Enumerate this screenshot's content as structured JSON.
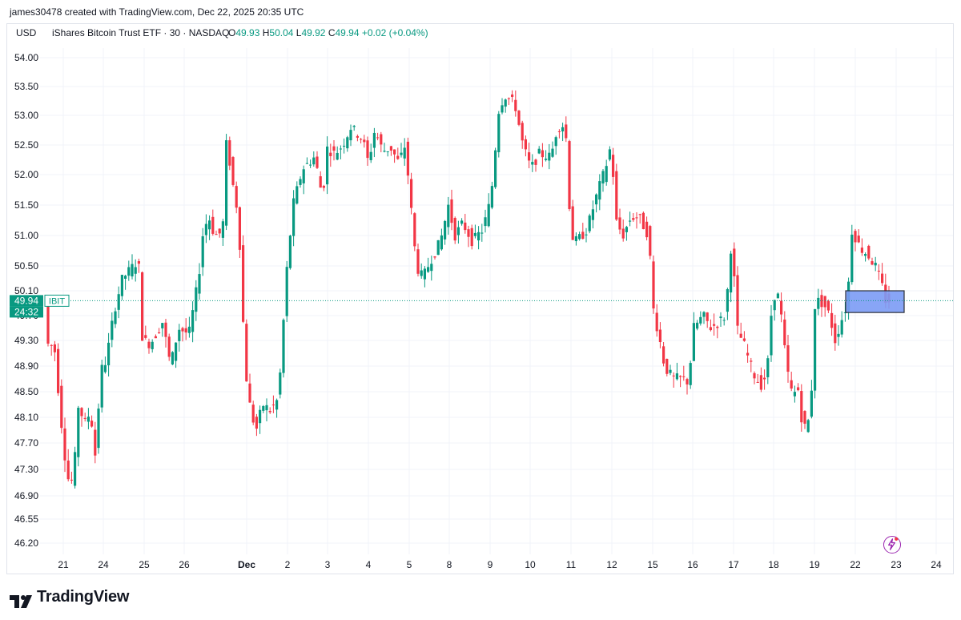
{
  "header": {
    "created_by": "james30478 created with TradingView.com, Dec 22, 2025 20:35 UTC"
  },
  "legend": {
    "currency": "USD",
    "symbol_desc": "iShares Bitcoin Trust ETF · 30 · NASDAQ",
    "o_label": "O",
    "o_value": "49.93",
    "h_label": "H",
    "h_value": "50.04",
    "l_label": "L",
    "l_value": "49.92",
    "c_label": "C",
    "c_value": "49.94",
    "change": "+0.02 (+0.04%)"
  },
  "price_tag": {
    "price": "49.94",
    "ticker": "IBIT",
    "countdown": "24:32"
  },
  "brand": {
    "name": "TradingView"
  },
  "colors": {
    "up": "#089981",
    "down": "#f23645",
    "grid": "#f0f3fa",
    "text": "#131722",
    "box_fill": "#7b9bf5",
    "box_stroke": "#2a2e39",
    "accent_purple": "#9c27b0"
  },
  "chart_data": {
    "type": "candlestick",
    "interval": "30",
    "yaxis_ticks": [
      "54.00",
      "53.50",
      "53.00",
      "52.50",
      "52.00",
      "51.50",
      "51.00",
      "50.50",
      "50.10",
      "49.70",
      "49.30",
      "48.90",
      "48.50",
      "48.10",
      "47.70",
      "47.30",
      "46.90",
      "46.55",
      "46.20"
    ],
    "xaxis_ticks": [
      "21",
      "24",
      "25",
      "26",
      "Dec",
      "2",
      "3",
      "4",
      "5",
      "8",
      "9",
      "10",
      "11",
      "12",
      "15",
      "16",
      "17",
      "18",
      "19",
      "22",
      "23",
      "24"
    ],
    "ylim": [
      46.0,
      54.25
    ],
    "current_price": 49.94,
    "grid": true,
    "session_closes": [
      {
        "session": "21",
        "close": 49.3
      },
      {
        "session": "24",
        "close": 47.35
      },
      {
        "session": "24b",
        "close": 48.8
      },
      {
        "session": "25",
        "close": 50.65
      },
      {
        "session": "25b",
        "close": 49.35
      },
      {
        "session": "26",
        "close": 48.9
      },
      {
        "session": "26b",
        "close": 51.05
      },
      {
        "session": "Dec",
        "close": 51.3
      },
      {
        "session": "Dec-b",
        "close": 48.45
      },
      {
        "session": "3",
        "close": 52.45
      },
      {
        "session": "4",
        "close": 52.6
      },
      {
        "session": "5",
        "close": 50.5
      },
      {
        "session": "8",
        "close": 51.05
      },
      {
        "session": "9",
        "close": 53.2
      },
      {
        "session": "10",
        "close": 52.5
      },
      {
        "session": "11",
        "close": 51.0
      },
      {
        "session": "12",
        "close": 51.05
      },
      {
        "session": "15",
        "close": 48.7
      },
      {
        "session": "16",
        "close": 49.75
      },
      {
        "session": "17",
        "close": 48.75
      },
      {
        "session": "18",
        "close": 48.6
      },
      {
        "session": "19",
        "close": 49.95
      },
      {
        "session": "22",
        "close": 49.94
      }
    ],
    "annotation_box": {
      "from_price": 49.75,
      "to_price": 50.1,
      "label": ""
    }
  }
}
